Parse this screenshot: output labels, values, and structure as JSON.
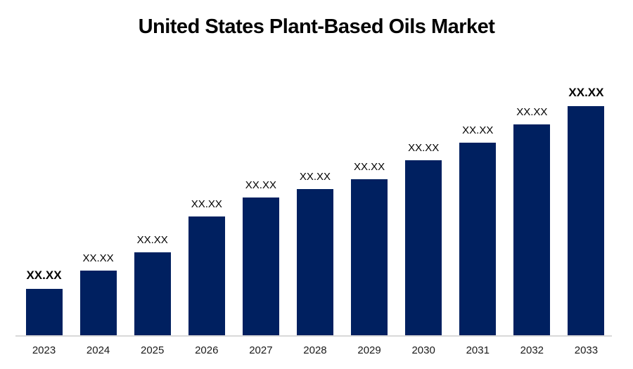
{
  "page": {
    "background_color": "#ffffff"
  },
  "chart_data": {
    "type": "bar",
    "title": "United States Plant-Based Oils Market",
    "xlabel": "",
    "ylabel": "",
    "categories": [
      "2023",
      "2024",
      "2025",
      "2026",
      "2027",
      "2028",
      "2029",
      "2030",
      "2031",
      "2032",
      "2033"
    ],
    "value_labels": [
      "XX.XX",
      "XX.XX",
      "XX.XX",
      "XX.XX",
      "XX.XX",
      "XX.XX",
      "XX.XX",
      "XX.XX",
      "XX.XX",
      "XX.XX",
      "XX.XX"
    ],
    "values_masked": true,
    "relative_heights_pct": [
      20.2,
      28.2,
      36.2,
      51.8,
      60.1,
      63.8,
      68.1,
      76.4,
      84.0,
      92.0,
      100.0
    ],
    "bold_label_indices": [
      0,
      10
    ],
    "bar_color": "#002060",
    "axis_line_color": "#d9d9d9",
    "title_color": "#000000",
    "label_color": "#000000",
    "legend": "none",
    "gridlines": false,
    "y_axis_visible": false
  }
}
